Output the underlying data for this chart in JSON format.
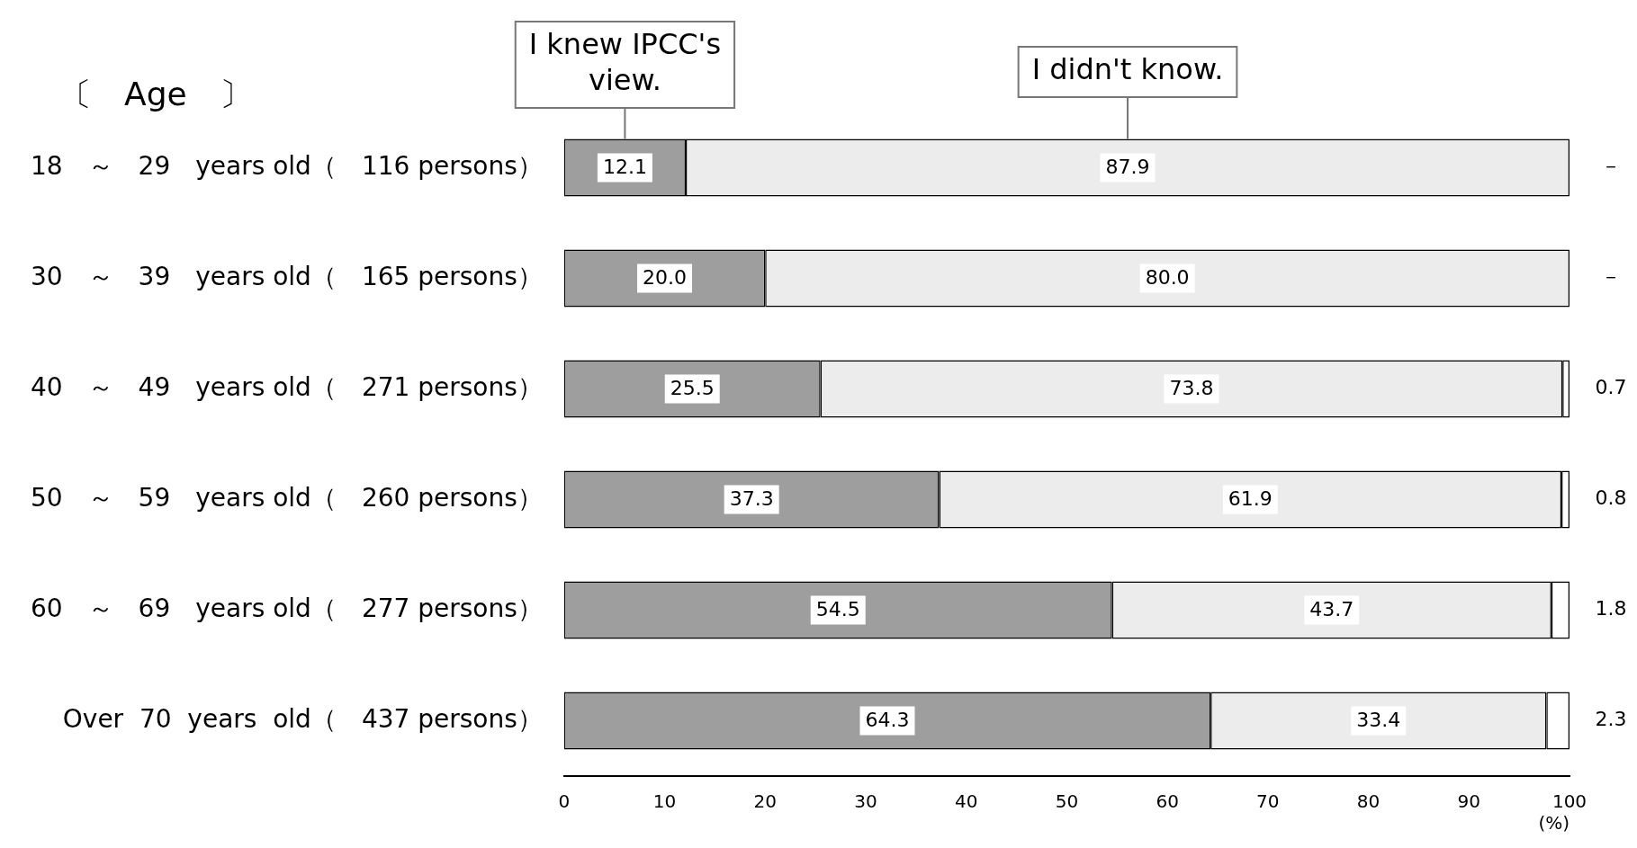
{
  "chart_data": {
    "type": "bar",
    "orientation": "horizontal",
    "stacked": true,
    "categories": [
      "18　～　29　years old（　116 persons）",
      "30　～　39　years old（　165 persons）",
      "40　～　49　years old（　271 persons）",
      "50　～　59　years old（　260 persons）",
      "60　～　69　years old（　277 persons）",
      "Over  70  years  old（　437 persons）"
    ],
    "series": [
      {
        "name": "I knew IPCC's view.",
        "color": "#9e9e9e",
        "values": [
          12.1,
          20.0,
          25.5,
          37.3,
          54.5,
          64.3
        ],
        "value_labels": [
          "12.1",
          "20.0",
          "25.5",
          "37.3",
          "54.5",
          "64.3"
        ]
      },
      {
        "name": "I didn't know.",
        "color": "#ececec",
        "values": [
          87.9,
          80.0,
          73.8,
          61.9,
          43.7,
          33.4
        ],
        "value_labels": [
          "87.9",
          "80.0",
          "73.8",
          "61.9",
          "43.7",
          "33.4"
        ]
      },
      {
        "color": "#ffffff",
        "values": [
          0,
          0,
          0.7,
          0.8,
          1.8,
          2.3
        ],
        "value_labels": [
          "－",
          "－",
          "0.7",
          "0.8",
          "1.8",
          "2.3"
        ]
      }
    ],
    "xlim": [
      0,
      100
    ],
    "xticks": [
      0,
      10,
      20,
      30,
      40,
      50,
      60,
      70,
      80,
      90,
      100
    ],
    "xlabel": "(%)",
    "grid": false,
    "legend": false,
    "annotations": [
      "〔　Age　〕"
    ]
  }
}
